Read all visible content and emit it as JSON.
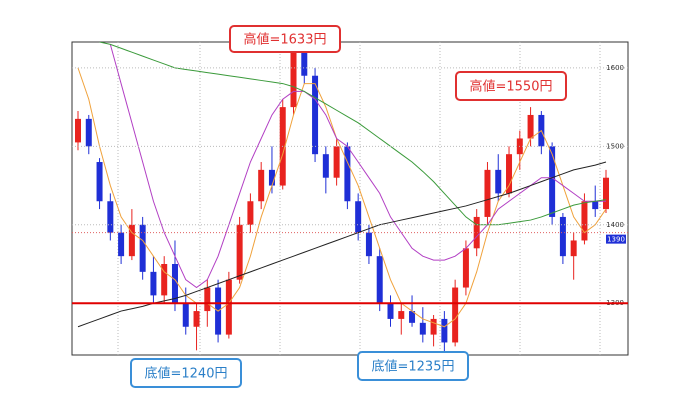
{
  "chart_data": {
    "type": "candlestick",
    "categories": [
      null,
      null,
      null,
      null,
      null,
      null,
      null,
      null,
      null,
      null,
      null,
      null,
      null,
      null,
      null,
      null,
      null,
      null,
      null,
      null,
      null,
      null,
      null,
      null,
      null,
      null,
      null,
      null,
      null,
      null,
      null,
      null,
      null,
      null,
      null,
      null,
      null,
      null,
      null,
      null,
      null,
      null,
      null,
      null,
      null,
      null,
      null,
      null,
      null,
      null
    ],
    "open": [
      1505,
      1535,
      1480,
      1430,
      1390,
      1360,
      1400,
      1340,
      1310,
      1350,
      1300,
      1270,
      1290,
      1320,
      1260,
      1330,
      1400,
      1430,
      1470,
      1450,
      1550,
      1620,
      1590,
      1490,
      1460,
      1500,
      1430,
      1390,
      1360,
      1300,
      1280,
      1290,
      1275,
      1260,
      1280,
      1250,
      1320,
      1370,
      1410,
      1470,
      1440,
      1490,
      1510,
      1540,
      1500,
      1410,
      1360,
      1380,
      1430,
      1420
    ],
    "high": [
      1545,
      1540,
      1485,
      1440,
      1400,
      1420,
      1410,
      1360,
      1360,
      1380,
      1320,
      1300,
      1330,
      1330,
      1340,
      1410,
      1440,
      1480,
      1500,
      1560,
      1633,
      1630,
      1600,
      1500,
      1510,
      1505,
      1440,
      1400,
      1370,
      1310,
      1300,
      1310,
      1295,
      1285,
      1290,
      1330,
      1380,
      1420,
      1480,
      1490,
      1500,
      1520,
      1550,
      1545,
      1505,
      1415,
      1390,
      1440,
      1450,
      1470
    ],
    "low": [
      1495,
      1490,
      1420,
      1380,
      1350,
      1355,
      1330,
      1300,
      1300,
      1290,
      1260,
      1240,
      1270,
      1250,
      1255,
      1325,
      1390,
      1420,
      1440,
      1445,
      1540,
      1580,
      1480,
      1440,
      1450,
      1420,
      1380,
      1350,
      1290,
      1270,
      1260,
      1270,
      1250,
      1245,
      1235,
      1245,
      1310,
      1360,
      1400,
      1430,
      1435,
      1470,
      1500,
      1490,
      1400,
      1350,
      1330,
      1375,
      1410,
      1415
    ],
    "close": [
      1535,
      1500,
      1430,
      1390,
      1360,
      1400,
      1340,
      1310,
      1350,
      1300,
      1270,
      1290,
      1320,
      1260,
      1330,
      1400,
      1430,
      1470,
      1450,
      1550,
      1620,
      1590,
      1490,
      1460,
      1500,
      1430,
      1390,
      1360,
      1300,
      1280,
      1290,
      1275,
      1260,
      1280,
      1250,
      1320,
      1370,
      1410,
      1470,
      1440,
      1490,
      1510,
      1540,
      1500,
      1410,
      1360,
      1380,
      1430,
      1420,
      1460
    ],
    "up_color": "#e8231f",
    "down_color": "#1f2fd6",
    "lines": [
      {
        "color": "#f0a23c",
        "values": [
          1600,
          1560,
          1500,
          1450,
          1410,
          1390,
          1380,
          1360,
          1340,
          1330,
          1310,
          1300,
          1300,
          1290,
          1300,
          1320,
          1360,
          1410,
          1450,
          1490,
          1540,
          1580,
          1580,
          1550,
          1510,
          1480,
          1450,
          1410,
          1370,
          1330,
          1300,
          1290,
          1280,
          1275,
          1270,
          1280,
          1300,
          1340,
          1390,
          1430,
          1450,
          1480,
          1510,
          1520,
          1490,
          1450,
          1410,
          1390,
          1400,
          1420
        ]
      },
      {
        "color": "#b23fc4",
        "values": [
          null,
          null,
          null,
          1630,
          1580,
          1530,
          1480,
          1430,
          1390,
          1360,
          1330,
          1320,
          1330,
          1360,
          1400,
          1440,
          1480,
          1510,
          1540,
          1560,
          1570,
          1570,
          1560,
          1540,
          1510,
          1500,
          1480,
          1460,
          1440,
          1410,
          1390,
          1370,
          1360,
          1355,
          1355,
          1360,
          1370,
          1385,
          1400,
          1420,
          1430,
          1440,
          1450,
          1460,
          1460,
          1450,
          1440,
          1430,
          1430,
          1430
        ]
      },
      {
        "color": "#3a9a3a",
        "values": [
          null,
          null,
          1633,
          1630,
          1625,
          1620,
          1615,
          1610,
          1605,
          1600,
          1598,
          1596,
          1594,
          1592,
          1590,
          1588,
          1586,
          1584,
          1582,
          1580,
          1576,
          1570,
          1562,
          1554,
          1546,
          1538,
          1530,
          1520,
          1510,
          1500,
          1490,
          1480,
          1468,
          1455,
          1440,
          1425,
          1410,
          1400,
          1400,
          1400,
          1402,
          1404,
          1406,
          1410,
          1415,
          1420,
          1425,
          1428,
          1430,
          1432
        ]
      },
      {
        "color": "#222222",
        "values": [
          1270,
          1275,
          1280,
          1285,
          1290,
          1293,
          1296,
          1300,
          1303,
          1306,
          1310,
          1315,
          1320,
          1325,
          1330,
          1335,
          1340,
          1345,
          1350,
          1355,
          1360,
          1365,
          1370,
          1375,
          1380,
          1385,
          1390,
          1395,
          1400,
          1403,
          1406,
          1409,
          1412,
          1415,
          1418,
          1421,
          1424,
          1428,
          1432,
          1436,
          1440,
          1445,
          1450,
          1455,
          1460,
          1465,
          1470,
          1473,
          1476,
          1480
        ]
      }
    ],
    "ylim": [
      1234,
      1633
    ],
    "yticks": [
      1300,
      1400,
      1500,
      1600
    ],
    "grid": true,
    "support_line": {
      "value": 1300,
      "color": "#e00000"
    },
    "price_line": 1390,
    "annotations": [
      "高値=1633円",
      "高値=1550円",
      "底値=1240円",
      "底値=1235円"
    ]
  }
}
